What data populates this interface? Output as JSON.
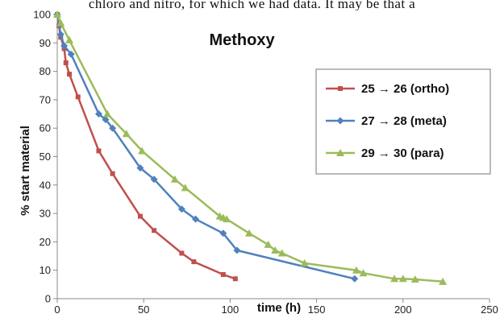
{
  "page_text": "chloro and nitro, for which we had data. It may be that a",
  "chart_data": {
    "type": "line",
    "title": "Methoxy",
    "xlabel": "time (h)",
    "ylabel": "% start material",
    "xlim": [
      0,
      250
    ],
    "ylim": [
      0,
      100
    ],
    "x_ticks": [
      0,
      50,
      100,
      150,
      200,
      250
    ],
    "y_ticks": [
      0,
      10,
      20,
      30,
      40,
      50,
      60,
      70,
      80,
      90,
      100
    ],
    "grid": false,
    "legend_position": "right",
    "series": [
      {
        "name": "25 → 26 (ortho)",
        "color": "#c0504d",
        "marker": "square",
        "points": [
          [
            0,
            100
          ],
          [
            1,
            96
          ],
          [
            2,
            92
          ],
          [
            4,
            88
          ],
          [
            5,
            83
          ],
          [
            7,
            79
          ],
          [
            12,
            71
          ],
          [
            24,
            52
          ],
          [
            32,
            44
          ],
          [
            48,
            29
          ],
          [
            56,
            24
          ],
          [
            72,
            16
          ],
          [
            79,
            13
          ],
          [
            96,
            8.5
          ],
          [
            103,
            7
          ]
        ]
      },
      {
        "name": "27 → 28 (meta)",
        "color": "#4f81bd",
        "marker": "diamond",
        "points": [
          [
            0,
            100
          ],
          [
            2,
            93
          ],
          [
            4,
            89
          ],
          [
            8,
            86
          ],
          [
            24,
            65
          ],
          [
            28,
            63
          ],
          [
            32,
            60
          ],
          [
            48,
            46
          ],
          [
            56,
            42
          ],
          [
            72,
            31.5
          ],
          [
            80,
            28
          ],
          [
            96,
            23
          ],
          [
            104,
            17
          ],
          [
            172,
            7
          ]
        ]
      },
      {
        "name": "29 → 30 (para)",
        "color": "#9bbb59",
        "marker": "triangle",
        "points": [
          [
            0,
            100
          ],
          [
            2,
            97
          ],
          [
            7,
            91
          ],
          [
            29,
            65
          ],
          [
            40,
            58
          ],
          [
            49,
            52
          ],
          [
            68,
            42
          ],
          [
            74,
            39
          ],
          [
            94,
            29
          ],
          [
            96,
            28.5
          ],
          [
            98,
            28
          ],
          [
            111,
            23
          ],
          [
            122,
            19
          ],
          [
            126,
            17
          ],
          [
            130,
            16
          ],
          [
            143,
            12.5
          ],
          [
            173,
            10
          ],
          [
            177,
            9
          ],
          [
            195,
            7
          ],
          [
            200,
            7
          ],
          [
            207,
            6.8
          ],
          [
            223,
            6
          ]
        ]
      }
    ]
  }
}
